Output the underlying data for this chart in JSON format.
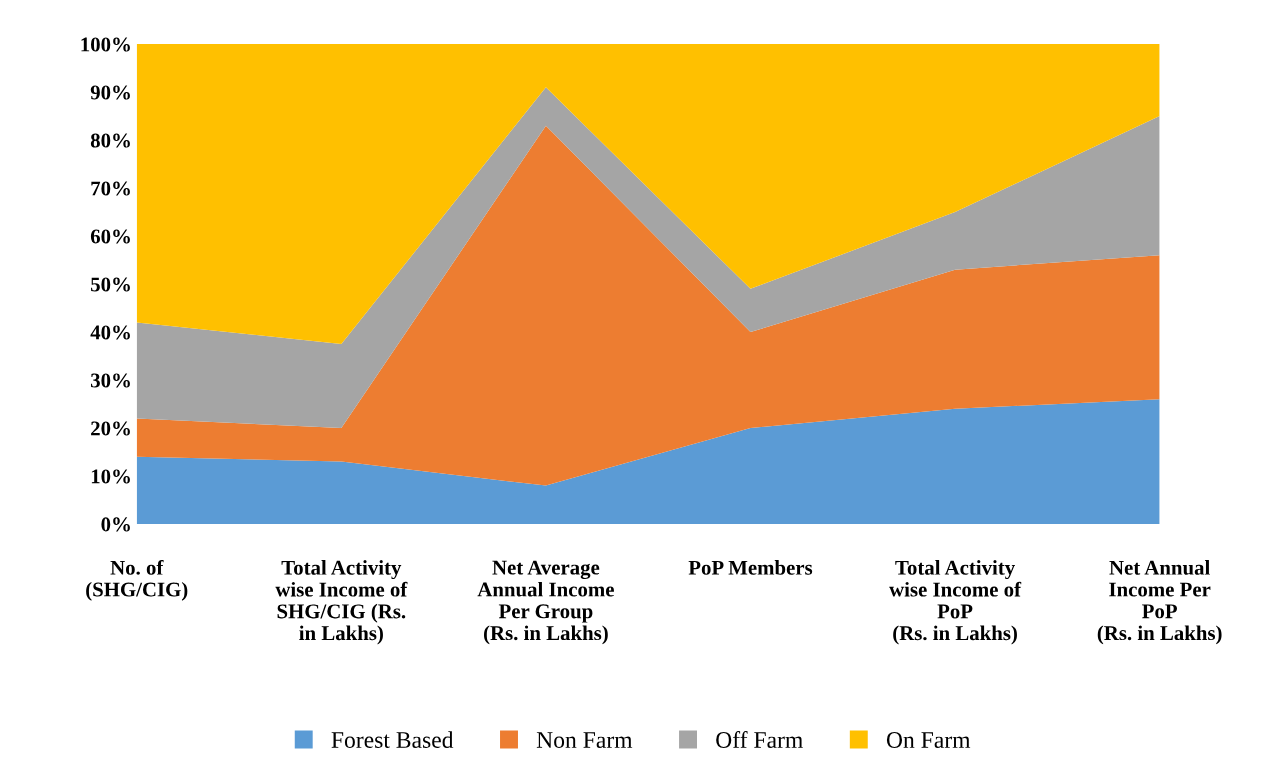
{
  "chart_data": {
    "type": "area",
    "stacked": true,
    "categories": [
      "No. of\n(SHG/CIG)",
      "Total Activity\nwise Income of\nSHG/CIG (Rs.\nin Lakhs)",
      "Net Average\nAnnual Income\nPer Group\n(Rs. in Lakhs)",
      "PoP Members",
      "Total Activity\nwise Income of\nPoP\n(Rs. in Lakhs)",
      "Net Annual\nIncome Per\nPoP\n(Rs. in Lakhs)"
    ],
    "series": [
      {
        "name": "Forest Based",
        "color": "#5b9bd5",
        "values": [
          14,
          13,
          8,
          20,
          24,
          26
        ]
      },
      {
        "name": "Non Farm",
        "color": "#ed7d31",
        "values": [
          8,
          7,
          75,
          20,
          29,
          30
        ]
      },
      {
        "name": "Off Farm",
        "color": "#a5a5a5",
        "values": [
          20,
          17.5,
          8,
          9,
          12,
          29
        ]
      },
      {
        "name": "On Farm",
        "color": "#ffc000",
        "values": [
          58,
          62.5,
          9,
          51,
          35,
          15
        ]
      }
    ],
    "ylim": [
      0,
      100
    ],
    "yticks": [
      {
        "value": 0,
        "label": "0%"
      },
      {
        "value": 10,
        "label": "10%"
      },
      {
        "value": 20,
        "label": "20%"
      },
      {
        "value": 30,
        "label": "30%"
      },
      {
        "value": 40,
        "label": "40%"
      },
      {
        "value": 50,
        "label": "50%"
      },
      {
        "value": 60,
        "label": "60%"
      },
      {
        "value": 70,
        "label": "70%"
      },
      {
        "value": 80,
        "label": "80%"
      },
      {
        "value": 90,
        "label": "90%"
      },
      {
        "value": 100,
        "label": "100%"
      }
    ],
    "grid": false,
    "legend": "bottom"
  }
}
